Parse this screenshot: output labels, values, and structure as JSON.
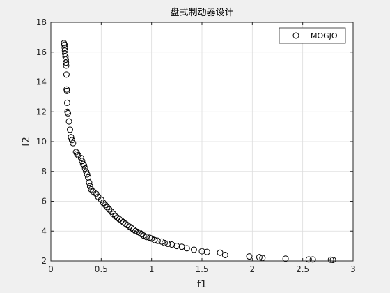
{
  "chart_data": {
    "type": "scatter",
    "title": "盘式制动器设计",
    "xlabel": "f1",
    "ylabel": "f2",
    "xlim": [
      0,
      3
    ],
    "ylim": [
      2,
      18
    ],
    "xticks": [
      "0",
      "0.5",
      "1",
      "1.5",
      "2",
      "2.5",
      "3"
    ],
    "yticks": [
      "2",
      "4",
      "6",
      "8",
      "10",
      "12",
      "14",
      "16",
      "18"
    ],
    "grid": true,
    "legend_position": "top-right",
    "marker": "open-circle",
    "series": [
      {
        "name": "MOGJO",
        "x": [
          0.13,
          0.135,
          0.138,
          0.14,
          0.142,
          0.145,
          0.148,
          0.15,
          0.152,
          0.155,
          0.157,
          0.16,
          0.162,
          0.165,
          0.17,
          0.18,
          0.19,
          0.2,
          0.21,
          0.22,
          0.25,
          0.26,
          0.27,
          0.3,
          0.31,
          0.32,
          0.33,
          0.34,
          0.35,
          0.36,
          0.37,
          0.38,
          0.39,
          0.4,
          0.42,
          0.45,
          0.47,
          0.5,
          0.52,
          0.54,
          0.56,
          0.58,
          0.6,
          0.62,
          0.64,
          0.66,
          0.68,
          0.7,
          0.72,
          0.74,
          0.76,
          0.78,
          0.8,
          0.82,
          0.84,
          0.86,
          0.88,
          0.9,
          0.92,
          0.95,
          0.98,
          1.0,
          1.03,
          1.06,
          1.1,
          1.13,
          1.16,
          1.2,
          1.25,
          1.3,
          1.35,
          1.42,
          1.5,
          1.55,
          1.68,
          1.73,
          1.97,
          2.07,
          2.1,
          2.33,
          2.56,
          2.6,
          2.78,
          2.8
        ],
        "y": [
          16.6,
          16.5,
          16.3,
          16.1,
          15.9,
          15.7,
          15.5,
          15.3,
          15.1,
          14.5,
          13.5,
          13.4,
          12.6,
          12.0,
          11.9,
          11.35,
          10.8,
          10.3,
          10.1,
          9.9,
          9.3,
          9.2,
          9.1,
          8.9,
          8.7,
          8.5,
          8.4,
          8.2,
          8.0,
          7.8,
          7.6,
          7.25,
          7.0,
          6.8,
          6.65,
          6.5,
          6.3,
          6.1,
          5.9,
          5.75,
          5.6,
          5.45,
          5.3,
          5.15,
          5.0,
          4.9,
          4.8,
          4.7,
          4.6,
          4.5,
          4.4,
          4.3,
          4.2,
          4.1,
          4.0,
          3.95,
          3.9,
          3.8,
          3.7,
          3.6,
          3.55,
          3.5,
          3.4,
          3.35,
          3.3,
          3.2,
          3.15,
          3.1,
          3.0,
          2.95,
          2.85,
          2.75,
          2.65,
          2.6,
          2.55,
          2.4,
          2.3,
          2.25,
          2.2,
          2.15,
          2.1,
          2.1,
          2.08,
          2.07
        ]
      }
    ]
  }
}
